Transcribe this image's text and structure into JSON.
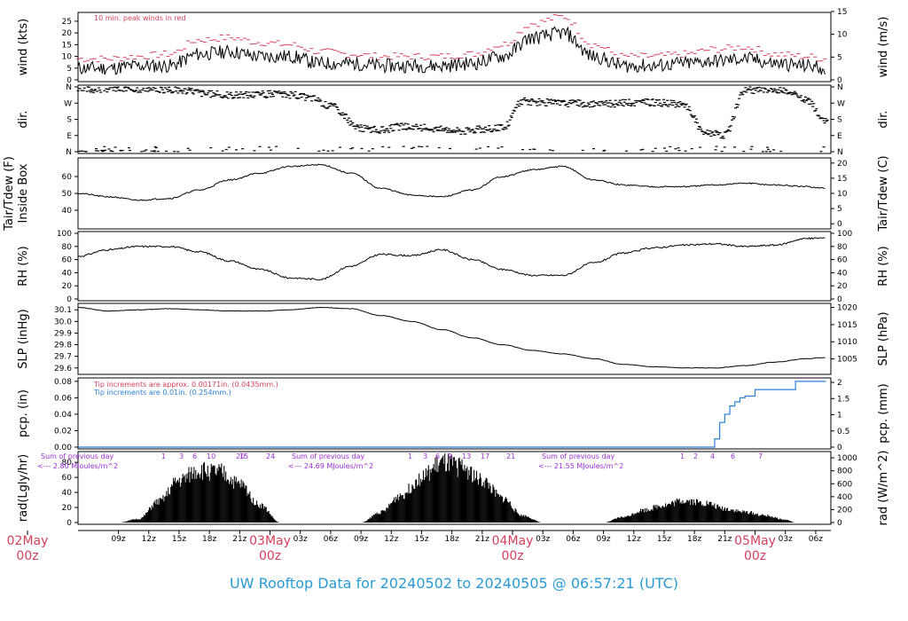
{
  "title": "UW Rooftop Data for 20240502  to  20240505 @ 06:57:21  (UTC)",
  "colors": {
    "title": "#2a9bd6",
    "accent_red": "#d6405e",
    "blue": "#2a7fd6",
    "purple": "#9b30d0",
    "line": "#000000"
  },
  "chart_data": [
    {
      "type": "line",
      "panel": "wind",
      "ylabel_left": "wind (kts)",
      "ylabel_right": "wind (m/s)",
      "ylim": [
        0,
        28
      ],
      "left_ticks": [
        "0",
        "5",
        "10",
        "15",
        "20",
        "25"
      ],
      "right_ticks": [
        "0",
        "5",
        "10",
        "15"
      ],
      "annotation": "10 min. peak winds in red",
      "x_hours_range": [
        5,
        79
      ],
      "series": [
        {
          "name": "wind",
          "x_hours": [
            5,
            8,
            11,
            14,
            17,
            20,
            23,
            26,
            29,
            32,
            35,
            38,
            41,
            44,
            47,
            50,
            53,
            56,
            59,
            62,
            65,
            68,
            71,
            74,
            77,
            79
          ],
          "values": [
            5,
            5,
            6,
            6,
            11,
            12,
            10,
            10,
            7,
            7,
            6,
            6,
            6,
            7,
            10,
            18,
            20,
            10,
            6,
            6,
            7,
            8,
            9,
            7,
            6,
            5
          ]
        },
        {
          "name": "10 min. peak",
          "x_hours": [
            5,
            8,
            11,
            14,
            17,
            20,
            23,
            26,
            29,
            32,
            35,
            38,
            41,
            44,
            47,
            50,
            53,
            56,
            59,
            62,
            65,
            68,
            71,
            74,
            77,
            79
          ],
          "values": [
            9,
            9,
            10,
            11,
            17,
            18,
            16,
            15,
            12,
            11,
            10,
            10,
            10,
            11,
            15,
            24,
            27,
            15,
            10,
            10,
            11,
            13,
            14,
            11,
            10,
            9
          ]
        }
      ]
    },
    {
      "type": "scatter",
      "panel": "dir",
      "ylabel_left": "dir.",
      "ylim": [
        0,
        360
      ],
      "left_ticks": [
        "N",
        "E",
        "S",
        "W",
        "N"
      ],
      "right_ticks": [
        "N",
        "E",
        "S",
        "W",
        "N"
      ],
      "x_hours": [
        5,
        8,
        10,
        12,
        14,
        16,
        18,
        20,
        22,
        24,
        26,
        28,
        30,
        33,
        35,
        37,
        39,
        41,
        43,
        45,
        47,
        49,
        51,
        53,
        55,
        57,
        59,
        61,
        63,
        65,
        67,
        69,
        71,
        73,
        75,
        77,
        79
      ],
      "values": [
        345,
        350,
        350,
        350,
        345,
        340,
        320,
        315,
        318,
        320,
        316,
        300,
        255,
        130,
        120,
        140,
        135,
        125,
        115,
        125,
        130,
        280,
        275,
        270,
        268,
        265,
        270,
        275,
        270,
        260,
        110,
        90,
        340,
        345,
        335,
        290,
        170
      ]
    },
    {
      "type": "line",
      "panel": "temperature",
      "ylabel_left": "Tair/Tdew (F)",
      "ylabel_left_2": "Inside Box",
      "ylabel_right": "Tair/Tdew (C)",
      "ylim": [
        30,
        70
      ],
      "left_ticks": [
        "40",
        "50",
        "60"
      ],
      "right_ticks": [
        "0",
        "5",
        "10",
        "15",
        "20"
      ],
      "x_hours": [
        5,
        8,
        11,
        14,
        17,
        20,
        23,
        26,
        29,
        32,
        35,
        38,
        41,
        44,
        47,
        50,
        53,
        56,
        59,
        62,
        65,
        68,
        71,
        74,
        77,
        79
      ],
      "values": [
        50,
        48,
        46,
        47,
        52,
        58,
        62,
        66,
        67,
        62,
        53,
        49,
        48,
        52,
        60,
        64,
        66,
        58,
        55,
        54,
        54,
        55,
        56,
        55,
        54,
        53
      ]
    },
    {
      "type": "line",
      "panel": "rh",
      "ylabel_left": "RH (%)",
      "ylabel_right": "RH (%)",
      "ylim": [
        0,
        100
      ],
      "left_ticks": [
        "0",
        "20",
        "40",
        "60",
        "80",
        "100"
      ],
      "right_ticks": [
        "0",
        "20",
        "40",
        "60",
        "80",
        "100"
      ],
      "x_hours": [
        5,
        8,
        11,
        14,
        17,
        20,
        23,
        26,
        29,
        32,
        35,
        38,
        41,
        44,
        47,
        50,
        53,
        56,
        59,
        62,
        65,
        68,
        71,
        74,
        77,
        79
      ],
      "values": [
        65,
        75,
        80,
        80,
        72,
        58,
        45,
        32,
        30,
        50,
        68,
        66,
        75,
        60,
        45,
        36,
        36,
        55,
        70,
        78,
        82,
        84,
        80,
        82,
        92,
        93
      ]
    },
    {
      "type": "line",
      "panel": "pressure",
      "ylabel_left": "SLP (inHg)",
      "ylabel_right": "SLP (hPa)",
      "ylim": [
        29.56,
        30.14
      ],
      "left_ticks": [
        "29.6",
        "29.7",
        "29.8",
        "29.9",
        "30.0",
        "30.1"
      ],
      "right_ticks": [
        "1005",
        "1010",
        "1015",
        "1020"
      ],
      "x_hours": [
        5,
        8,
        11,
        14,
        17,
        20,
        23,
        26,
        29,
        32,
        35,
        38,
        41,
        44,
        47,
        50,
        53,
        56,
        59,
        62,
        65,
        68,
        71,
        74,
        77,
        79
      ],
      "values": [
        30.12,
        30.09,
        30.1,
        30.11,
        30.1,
        30.09,
        30.09,
        30.1,
        30.12,
        30.11,
        30.05,
        30.0,
        29.93,
        29.86,
        29.8,
        29.75,
        29.72,
        29.68,
        29.63,
        29.61,
        29.6,
        29.6,
        29.62,
        29.65,
        29.68,
        29.69
      ]
    },
    {
      "type": "line",
      "panel": "precip",
      "ylabel_left": "pcp. (in)",
      "ylabel_right": "pcp. (mm)",
      "ylim": [
        0,
        0.082
      ],
      "left_ticks": [
        "0.00",
        "0.02",
        "0.04",
        "0.06",
        "0.08"
      ],
      "right_ticks": [
        "0",
        "0.5",
        "1",
        "1.5",
        "2"
      ],
      "annotation_1": "Tip increments are approx. 0.00171in. (0.0435mm.)",
      "annotation_2": "Tip increments are 0.01in. (0.254mm.)",
      "x_hours": [
        5,
        67.5,
        68,
        68.5,
        69,
        69.5,
        70,
        70.5,
        71,
        72,
        76,
        79
      ],
      "values": [
        0,
        0,
        0.01,
        0.03,
        0.04,
        0.05,
        0.055,
        0.06,
        0.062,
        0.07,
        0.08,
        0.08
      ]
    },
    {
      "type": "area",
      "panel": "radiation",
      "ylabel_left": "rad(Lgly/hr)",
      "ylabel_right": "rad (W/m^2)",
      "ylim": [
        0,
        92
      ],
      "left_ticks": [
        "0",
        "20",
        "40",
        "60",
        "80"
      ],
      "right_ticks": [
        "0",
        "200",
        "400",
        "600",
        "800",
        "1000"
      ],
      "x_hours": [
        9,
        11,
        13,
        15,
        17,
        19,
        21,
        23,
        25,
        33,
        35,
        37,
        39,
        41,
        43,
        45,
        47,
        49,
        51,
        57,
        59,
        61,
        63,
        65,
        67,
        69,
        71,
        73,
        75,
        76
      ],
      "values": [
        0,
        5,
        30,
        60,
        75,
        72,
        55,
        25,
        0,
        0,
        15,
        40,
        65,
        85,
        80,
        60,
        35,
        10,
        0,
        0,
        8,
        18,
        25,
        32,
        28,
        20,
        15,
        10,
        4,
        0
      ],
      "annotations": [
        {
          "sum_label": "Sum of previous day",
          "sum_value": "<--- 2.80 MJoules/m^2",
          "hours": [
            "1",
            "3",
            "6",
            "10",
            "15",
            "20",
            "24"
          ]
        },
        {
          "sum_label": "Sum of previous day",
          "sum_value": "<--- 24.69 MJoules/m^2",
          "hours": [
            "1",
            "3",
            "6",
            "9",
            "13",
            "17",
            "21"
          ]
        },
        {
          "sum_label": "Sum of previous day",
          "sum_value": "<--- 21.55 MJoules/m^2",
          "hours": [
            "1",
            "2",
            "4",
            "6",
            "7"
          ]
        }
      ]
    }
  ],
  "x_axis": {
    "ticks": [
      {
        "label": "09z",
        "h": 9
      },
      {
        "label": "12z",
        "h": 12
      },
      {
        "label": "15z",
        "h": 15
      },
      {
        "label": "18z",
        "h": 18
      },
      {
        "label": "21z",
        "h": 21
      },
      {
        "label": "03z",
        "h": 27
      },
      {
        "label": "06z",
        "h": 30
      },
      {
        "label": "09z",
        "h": 33
      },
      {
        "label": "12z",
        "h": 36
      },
      {
        "label": "15z",
        "h": 39
      },
      {
        "label": "18z",
        "h": 42
      },
      {
        "label": "21z",
        "h": 45
      },
      {
        "label": "03z",
        "h": 51
      },
      {
        "label": "06z",
        "h": 54
      },
      {
        "label": "09z",
        "h": 57
      },
      {
        "label": "12z",
        "h": 60
      },
      {
        "label": "15z",
        "h": 63
      },
      {
        "label": "18z",
        "h": 66
      },
      {
        "label": "21z",
        "h": 69
      },
      {
        "label": "03z",
        "h": 75
      },
      {
        "label": "06z",
        "h": 78
      }
    ],
    "days": [
      {
        "label": "02May",
        "sub": "00z",
        "h": 0
      },
      {
        "label": "03May",
        "sub": "00z",
        "h": 24
      },
      {
        "label": "04May",
        "sub": "00z",
        "h": 48
      },
      {
        "label": "05May",
        "sub": "00z",
        "h": 72
      }
    ]
  }
}
